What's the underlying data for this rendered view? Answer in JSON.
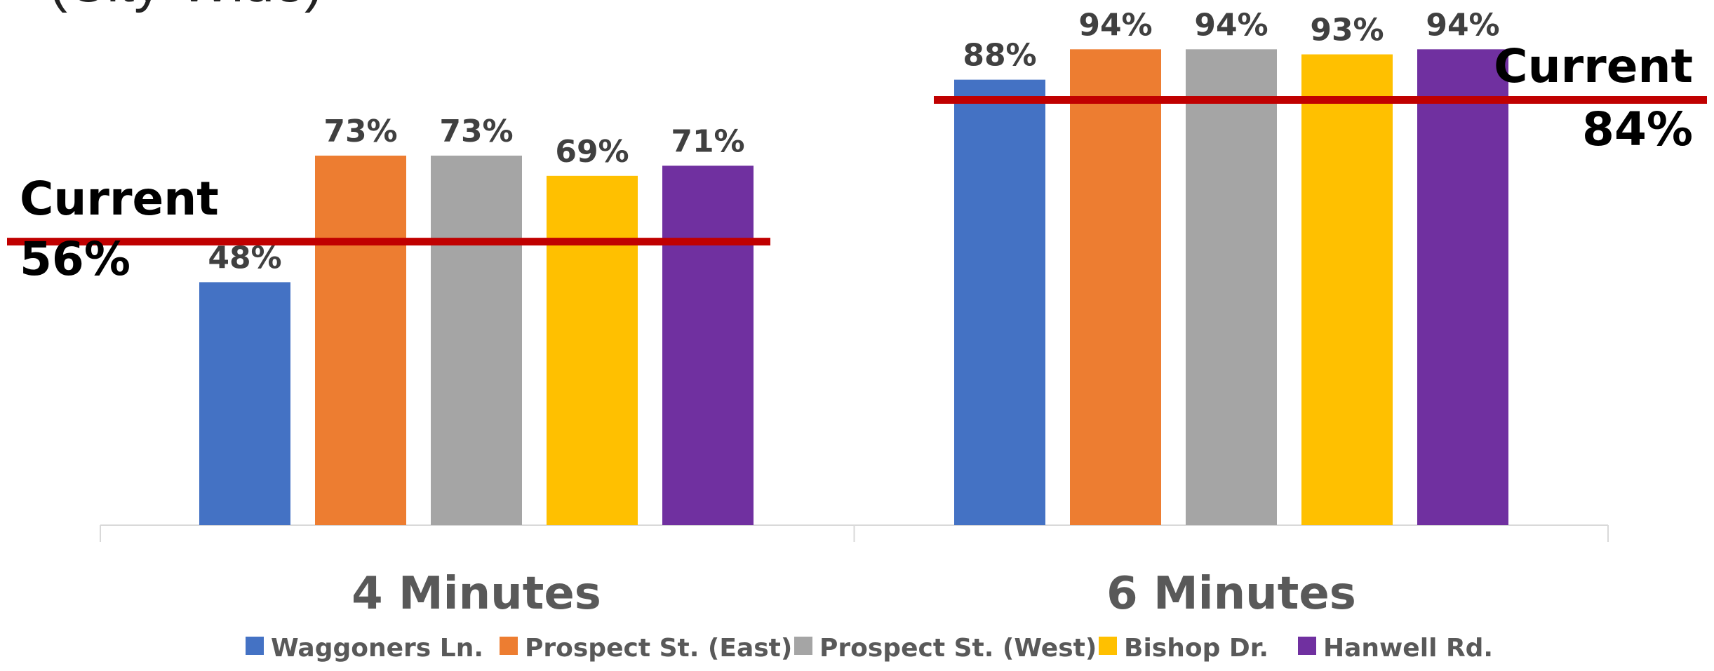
{
  "chart_data": {
    "type": "bar",
    "title_fragment": "(City-Wide)",
    "categories": [
      "4 Minutes",
      "6 Minutes"
    ],
    "series": [
      {
        "name": "Waggoners Ln.",
        "color": "#4472C4",
        "values": [
          48,
          88
        ]
      },
      {
        "name": "Prospect St. (East)",
        "color": "#ED7D31",
        "values": [
          73,
          94
        ]
      },
      {
        "name": "Prospect St. (West)",
        "color": "#A5A5A5",
        "values": [
          73,
          94
        ]
      },
      {
        "name": "Bishop Dr.",
        "color": "#FFC000",
        "values": [
          69,
          93
        ]
      },
      {
        "name": "Hanwell Rd.",
        "color": "#7030A0",
        "values": [
          71,
          94
        ]
      }
    ],
    "value_suffix": "%",
    "reference_lines": [
      {
        "category": "4 Minutes",
        "value": 56,
        "label": "Current",
        "value_label": "56%",
        "color": "#C00000"
      },
      {
        "category": "6 Minutes",
        "value": 84,
        "label": "Current",
        "value_label": "84%",
        "color": "#C00000"
      }
    ],
    "ylim": [
      0,
      100
    ],
    "grid": false,
    "legend_position": "bottom"
  }
}
